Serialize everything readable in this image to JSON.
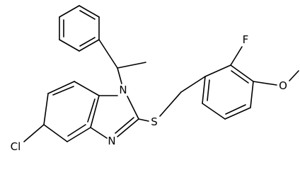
{
  "atoms": [
    {
      "label": "N"
    },
    {
      "label": "N"
    },
    {
      "label": "S"
    },
    {
      "label": "Cl"
    },
    {
      "label": "F"
    },
    {
      "label": "O"
    }
  ]
}
